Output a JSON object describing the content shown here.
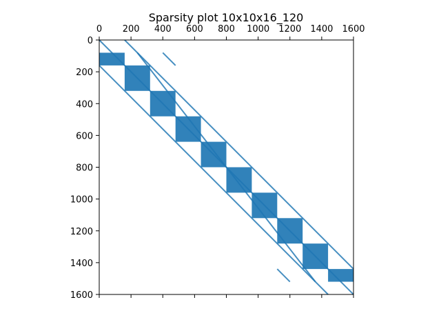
{
  "chart_data": {
    "type": "scatter",
    "plot_kind": "sparsity",
    "title": "Sparsity plot 10x10x16_120",
    "xlabel": "",
    "ylabel": "",
    "xlim": [
      0,
      1600
    ],
    "ylim": [
      1600,
      0
    ],
    "x_axis_position": "top",
    "y_inverted": true,
    "grid": false,
    "legend": "none",
    "color": "#1f77b4",
    "x_ticks": [
      0,
      200,
      400,
      600,
      800,
      1000,
      1200,
      1400,
      1600
    ],
    "y_ticks": [
      0,
      200,
      400,
      600,
      800,
      1000,
      1200,
      1400,
      1600
    ],
    "x_tick_labels": [
      "0",
      "200",
      "400",
      "600",
      "800",
      "1000",
      "1200",
      "1400",
      "1600"
    ],
    "y_tick_labels": [
      "0",
      "200",
      "400",
      "600",
      "800",
      "1000",
      "1200",
      "1400",
      "1600"
    ],
    "diagonal_blocks": [
      {
        "x": [
          0,
          160
        ],
        "y": [
          80,
          160
        ]
      },
      {
        "x": [
          160,
          320
        ],
        "y": [
          160,
          320
        ]
      },
      {
        "x": [
          320,
          480
        ],
        "y": [
          320,
          480
        ]
      },
      {
        "x": [
          480,
          640
        ],
        "y": [
          480,
          640
        ]
      },
      {
        "x": [
          640,
          800
        ],
        "y": [
          640,
          800
        ]
      },
      {
        "x": [
          800,
          960
        ],
        "y": [
          800,
          960
        ]
      },
      {
        "x": [
          960,
          1120
        ],
        "y": [
          960,
          1120
        ]
      },
      {
        "x": [
          1120,
          1280
        ],
        "y": [
          1120,
          1280
        ]
      },
      {
        "x": [
          1280,
          1440
        ],
        "y": [
          1280,
          1440
        ]
      },
      {
        "x": [
          1440,
          1600
        ],
        "y": [
          1440,
          1520
        ]
      }
    ],
    "diagonal_lines": [
      {
        "x": [
          0,
          1600
        ],
        "y": [
          0,
          1600
        ]
      },
      {
        "x": [
          0,
          1440
        ],
        "y": [
          160,
          1600
        ]
      },
      {
        "x": [
          160,
          1600
        ],
        "y": [
          0,
          1440
        ]
      },
      {
        "x": [
          240,
          1360
        ],
        "y": [
          80,
          1520
        ]
      },
      {
        "x": [
          400,
          480
        ],
        "y": [
          80,
          160
        ]
      },
      {
        "x": [
          1120,
          1200
        ],
        "y": [
          1440,
          1520
        ]
      }
    ]
  }
}
